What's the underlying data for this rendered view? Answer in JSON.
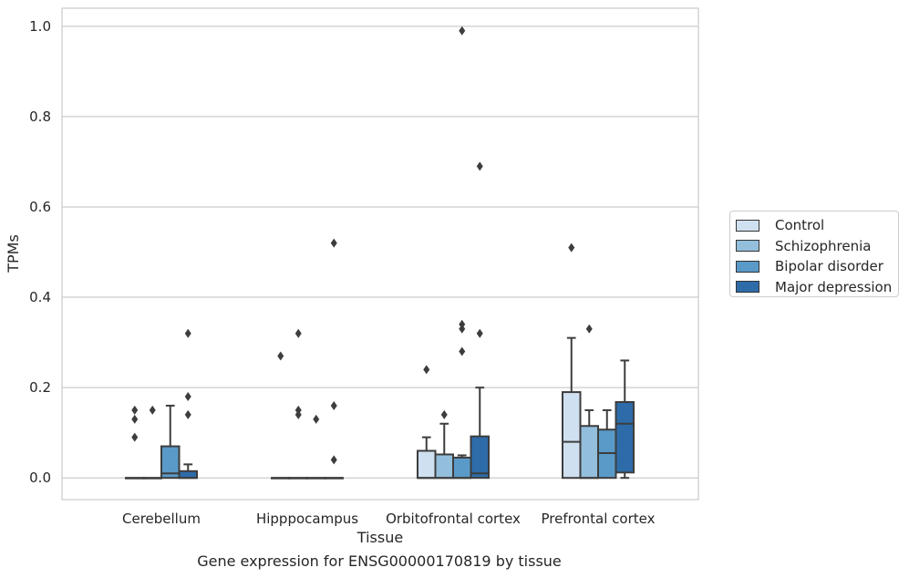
{
  "chart_data": {
    "type": "box",
    "ylabel": "TPMs",
    "xlabel": "Tissue",
    "caption": "Gene expression for ENSG00000170819 by tissue",
    "ylim": [
      -0.048,
      1.04
    ],
    "yticks": [
      "0.0",
      "0.2",
      "0.4",
      "0.6",
      "0.8",
      "1.0"
    ],
    "ytick_values": [
      0,
      0.2,
      0.4,
      0.6,
      0.8,
      1.0
    ],
    "grid": "horizontal",
    "legend_position": "right",
    "categories": [
      "Cerebellum",
      "Hipppocampus",
      "Orbitofrontal cortex",
      "Prefrontal cortex"
    ],
    "series": [
      {
        "name": "Control",
        "color": "#cfe0f0",
        "boxes": [
          {
            "q1": 0,
            "median": 0,
            "q3": 0,
            "whisker_low": 0,
            "whisker_high": 0,
            "outliers": [
              0.15,
              0.13,
              0.09
            ]
          },
          {
            "q1": 0,
            "median": 0,
            "q3": 0,
            "whisker_low": 0,
            "whisker_high": 0,
            "outliers": [
              0.27
            ]
          },
          {
            "q1": 0,
            "median": 0,
            "q3": 0.06,
            "whisker_low": 0,
            "whisker_high": 0.09,
            "outliers": [
              0.24
            ]
          },
          {
            "q1": 0,
            "median": 0.08,
            "q3": 0.19,
            "whisker_low": 0,
            "whisker_high": 0.31,
            "outliers": [
              0.51
            ]
          }
        ]
      },
      {
        "name": "Schizophrenia",
        "color": "#93bfdc",
        "boxes": [
          {
            "q1": 0,
            "median": 0,
            "q3": 0,
            "whisker_low": 0,
            "whisker_high": 0,
            "outliers": [
              0.15
            ]
          },
          {
            "q1": 0,
            "median": 0,
            "q3": 0,
            "whisker_low": 0,
            "whisker_high": 0,
            "outliers": [
              0.32,
              0.15,
              0.14
            ]
          },
          {
            "q1": 0,
            "median": 0,
            "q3": 0.052,
            "whisker_low": 0,
            "whisker_high": 0.12,
            "outliers": [
              0.14
            ]
          },
          {
            "q1": 0,
            "median": 0,
            "q3": 0.115,
            "whisker_low": 0,
            "whisker_high": 0.15,
            "outliers": [
              0.33
            ]
          }
        ]
      },
      {
        "name": "Bipolar disorder",
        "color": "#5a9ac8",
        "boxes": [
          {
            "q1": 0,
            "median": 0.01,
            "q3": 0.07,
            "whisker_low": 0,
            "whisker_high": 0.16,
            "outliers": []
          },
          {
            "q1": 0,
            "median": 0,
            "q3": 0,
            "whisker_low": 0,
            "whisker_high": 0,
            "outliers": [
              0.13
            ]
          },
          {
            "q1": 0,
            "median": 0,
            "q3": 0.045,
            "whisker_low": 0,
            "whisker_high": 0.05,
            "outliers": [
              0.99,
              0.34,
              0.33,
              0.28
            ]
          },
          {
            "q1": 0,
            "median": 0.055,
            "q3": 0.107,
            "whisker_low": 0,
            "whisker_high": 0.15,
            "outliers": []
          }
        ]
      },
      {
        "name": "Major depression",
        "color": "#2d6ca9",
        "boxes": [
          {
            "q1": 0,
            "median": 0,
            "q3": 0.015,
            "whisker_low": 0,
            "whisker_high": 0.03,
            "outliers": [
              0.32,
              0.18,
              0.14
            ]
          },
          {
            "q1": 0,
            "median": 0,
            "q3": 0,
            "whisker_low": 0,
            "whisker_high": 0,
            "outliers": [
              0.52,
              0.16,
              0.04
            ]
          },
          {
            "q1": 0,
            "median": 0.01,
            "q3": 0.092,
            "whisker_low": 0,
            "whisker_high": 0.2,
            "outliers": [
              0.69,
              0.32
            ]
          },
          {
            "q1": 0.012,
            "median": 0.12,
            "q3": 0.168,
            "whisker_low": 0,
            "whisker_high": 0.26,
            "outliers": []
          }
        ]
      }
    ]
  }
}
